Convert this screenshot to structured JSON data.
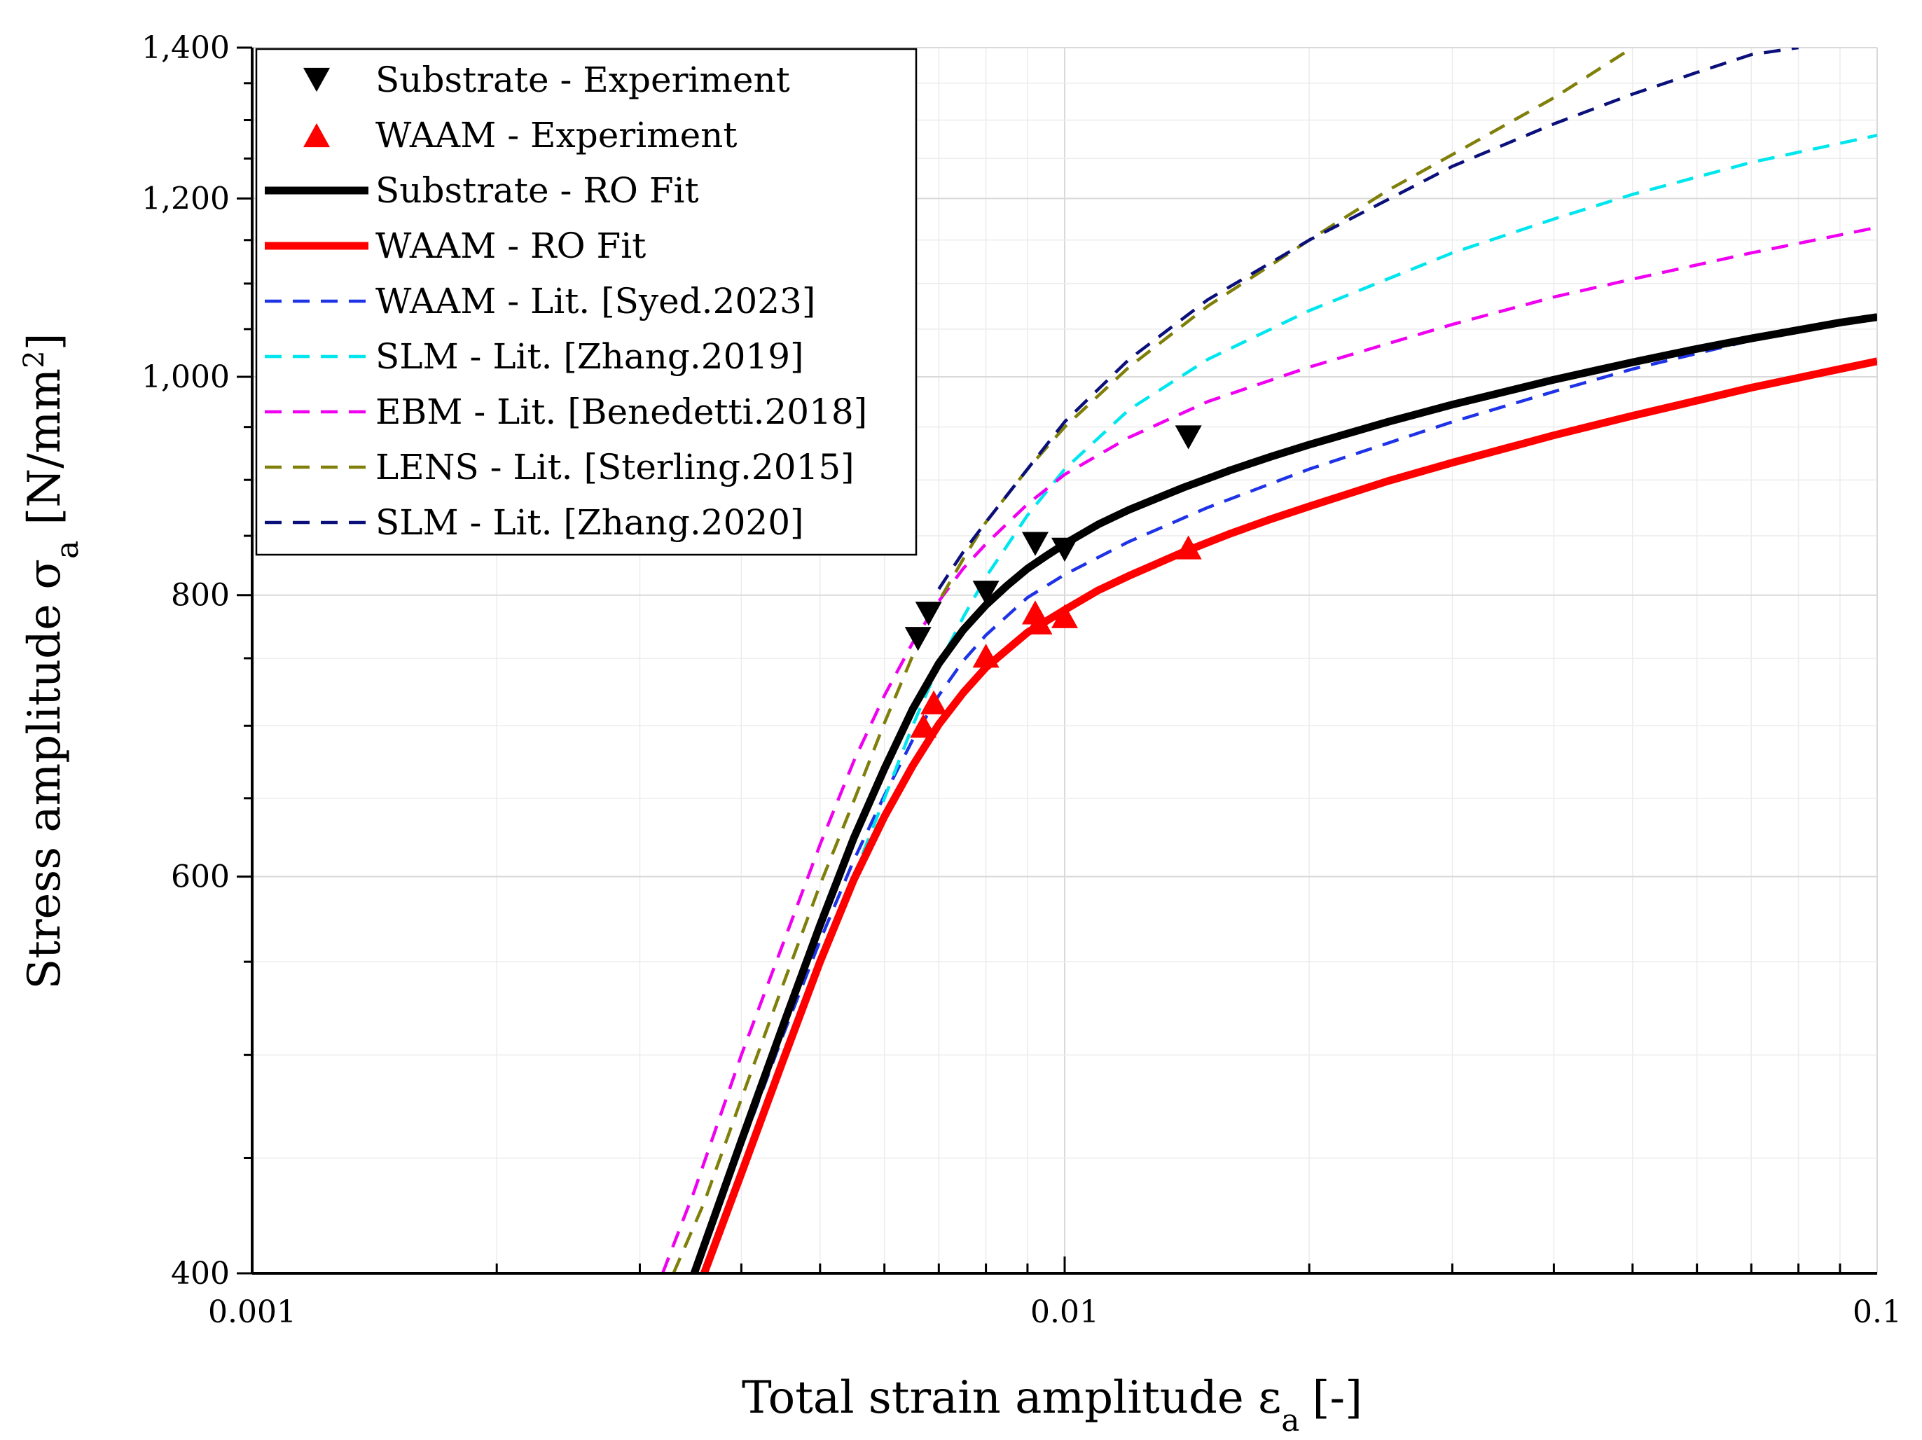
{
  "chart_data": {
    "type": "line",
    "x_scale": "log",
    "y_scale": "log",
    "xlim": [
      0.001,
      0.1
    ],
    "ylim": [
      400,
      1400
    ],
    "xlabel": "Total strain amplitude ε",
    "xlabel_sub": "a",
    "xlabel_suffix": "[-]",
    "ylabel": "Stress amplitude σ",
    "ylabel_sub": "a",
    "ylabel_unit": "[N/mm",
    "ylabel_unit_sup": "2",
    "ylabel_unit_close": "]",
    "x_ticks": [
      {
        "value": 0.001,
        "label": "0.001"
      },
      {
        "value": 0.01,
        "label": "0.01"
      },
      {
        "value": 0.1,
        "label": "0.1"
      }
    ],
    "y_ticks": [
      {
        "value": 400,
        "label": "400"
      },
      {
        "value": 600,
        "label": "600"
      },
      {
        "value": 800,
        "label": "800"
      },
      {
        "value": 1000,
        "label": "1,000"
      },
      {
        "value": 1200,
        "label": "1,200"
      },
      {
        "value": 1400,
        "label": "1,400"
      }
    ],
    "grid": true,
    "legend_position": "top-left",
    "series": [
      {
        "name": "Substrate - Experiment",
        "kind": "scatter",
        "marker": "triangle-down",
        "color": "#000000",
        "x": [
          0.0066,
          0.0068,
          0.008,
          0.0092,
          0.01,
          0.0142
        ],
        "y": [
          765,
          785,
          802,
          843,
          838,
          940
        ]
      },
      {
        "name": "WAAM - Experiment",
        "kind": "scatter",
        "marker": "triangle-up",
        "color": "#ff0000",
        "x": [
          0.0067,
          0.0069,
          0.008,
          0.0092,
          0.0093,
          0.01,
          0.0142
        ],
        "y": [
          700,
          717,
          752,
          786,
          778,
          783,
          840
        ]
      },
      {
        "name": "Substrate - RO Fit",
        "kind": "line",
        "style": "solid",
        "color": "#000000",
        "x": [
          0.0035,
          0.004,
          0.0045,
          0.005,
          0.0055,
          0.006,
          0.0065,
          0.007,
          0.0075,
          0.008,
          0.0085,
          0.009,
          0.0095,
          0.01,
          0.011,
          0.012,
          0.014,
          0.016,
          0.018,
          0.02,
          0.025,
          0.03,
          0.04,
          0.05,
          0.06,
          0.07,
          0.08,
          0.09,
          0.1
        ],
        "y": [
          400,
          458,
          515,
          571,
          624,
          670,
          712,
          746,
          772,
          792,
          808,
          822,
          833,
          843,
          860,
          873,
          893,
          909,
          922,
          933,
          955,
          972,
          997,
          1015,
          1029,
          1040,
          1049,
          1057,
          1063
        ]
      },
      {
        "name": "WAAM - RO Fit",
        "kind": "line",
        "style": "solid",
        "color": "#ff0000",
        "x": [
          0.0036,
          0.004,
          0.0045,
          0.005,
          0.0055,
          0.006,
          0.0065,
          0.007,
          0.0075,
          0.008,
          0.009,
          0.01,
          0.011,
          0.012,
          0.014,
          0.016,
          0.018,
          0.02,
          0.025,
          0.03,
          0.04,
          0.05,
          0.06,
          0.07,
          0.08,
          0.09,
          0.1
        ],
        "y": [
          400,
          443,
          497,
          550,
          598,
          638,
          672,
          701,
          724,
          743,
          770,
          788,
          804,
          816,
          836,
          852,
          865,
          876,
          899,
          916,
          942,
          961,
          976,
          989,
          999,
          1008,
          1016
        ]
      },
      {
        "name": "WAAM - Lit. [Syed.2023]",
        "kind": "line",
        "style": "dashed",
        "color": "#1e32e6",
        "x": [
          0.0035,
          0.004,
          0.0045,
          0.005,
          0.0055,
          0.006,
          0.0065,
          0.007,
          0.0075,
          0.008,
          0.009,
          0.01,
          0.012,
          0.015,
          0.02,
          0.03,
          0.04,
          0.05,
          0.07,
          0.1
        ],
        "y": [
          400,
          455,
          510,
          562,
          610,
          652,
          690,
          722,
          748,
          768,
          798,
          817,
          845,
          875,
          910,
          955,
          985,
          1008,
          1038,
          1065
        ]
      },
      {
        "name": "SLM - Lit. [Zhang.2019]",
        "kind": "line",
        "style": "dashed",
        "color": "#00e6ee",
        "x": [
          0.0036,
          0.004,
          0.0045,
          0.005,
          0.0055,
          0.006,
          0.0065,
          0.007,
          0.0075,
          0.008,
          0.009,
          0.01,
          0.012,
          0.015,
          0.02,
          0.03,
          0.04,
          0.05,
          0.07,
          0.1
        ],
        "y": [
          400,
          440,
          495,
          548,
          600,
          650,
          700,
          745,
          782,
          815,
          868,
          910,
          967,
          1018,
          1070,
          1135,
          1175,
          1205,
          1245,
          1280
        ]
      },
      {
        "name": "EBM - Lit. [Benedetti.2018]",
        "kind": "line",
        "style": "dashed",
        "color": "#f000f0",
        "x": [
          0.0032,
          0.0035,
          0.004,
          0.0045,
          0.005,
          0.0055,
          0.006,
          0.0065,
          0.007,
          0.0075,
          0.008,
          0.009,
          0.01,
          0.012,
          0.015,
          0.02,
          0.03,
          0.04,
          0.05,
          0.07,
          0.1
        ],
        "y": [
          400,
          435,
          500,
          560,
          620,
          675,
          722,
          762,
          795,
          822,
          843,
          878,
          905,
          940,
          975,
          1010,
          1055,
          1085,
          1105,
          1135,
          1165
        ]
      },
      {
        "name": "LENS - Lit. [Sterling.2015]",
        "kind": "line",
        "style": "dashed",
        "color": "#7f7f0a",
        "x": [
          0.0033,
          0.0036,
          0.004,
          0.0045,
          0.005,
          0.0055,
          0.006,
          0.0065,
          0.007,
          0.0075,
          0.008,
          0.009,
          0.01,
          0.012,
          0.015,
          0.02,
          0.025,
          0.03,
          0.04,
          0.05
        ],
        "y": [
          400,
          430,
          478,
          537,
          595,
          648,
          702,
          752,
          795,
          830,
          862,
          910,
          950,
          1010,
          1075,
          1150,
          1210,
          1255,
          1330,
          1400
        ]
      },
      {
        "name": "SLM - Lit. [Zhang.2020]",
        "kind": "line",
        "style": "dashed",
        "color": "#0a0f7a",
        "x": [
          0.007,
          0.0075,
          0.008,
          0.009,
          0.01,
          0.012,
          0.015,
          0.02,
          0.03,
          0.04,
          0.05,
          0.06,
          0.07,
          0.08
        ],
        "y": [
          805,
          836,
          862,
          910,
          955,
          1018,
          1082,
          1150,
          1240,
          1295,
          1335,
          1365,
          1390,
          1400
        ]
      }
    ]
  }
}
